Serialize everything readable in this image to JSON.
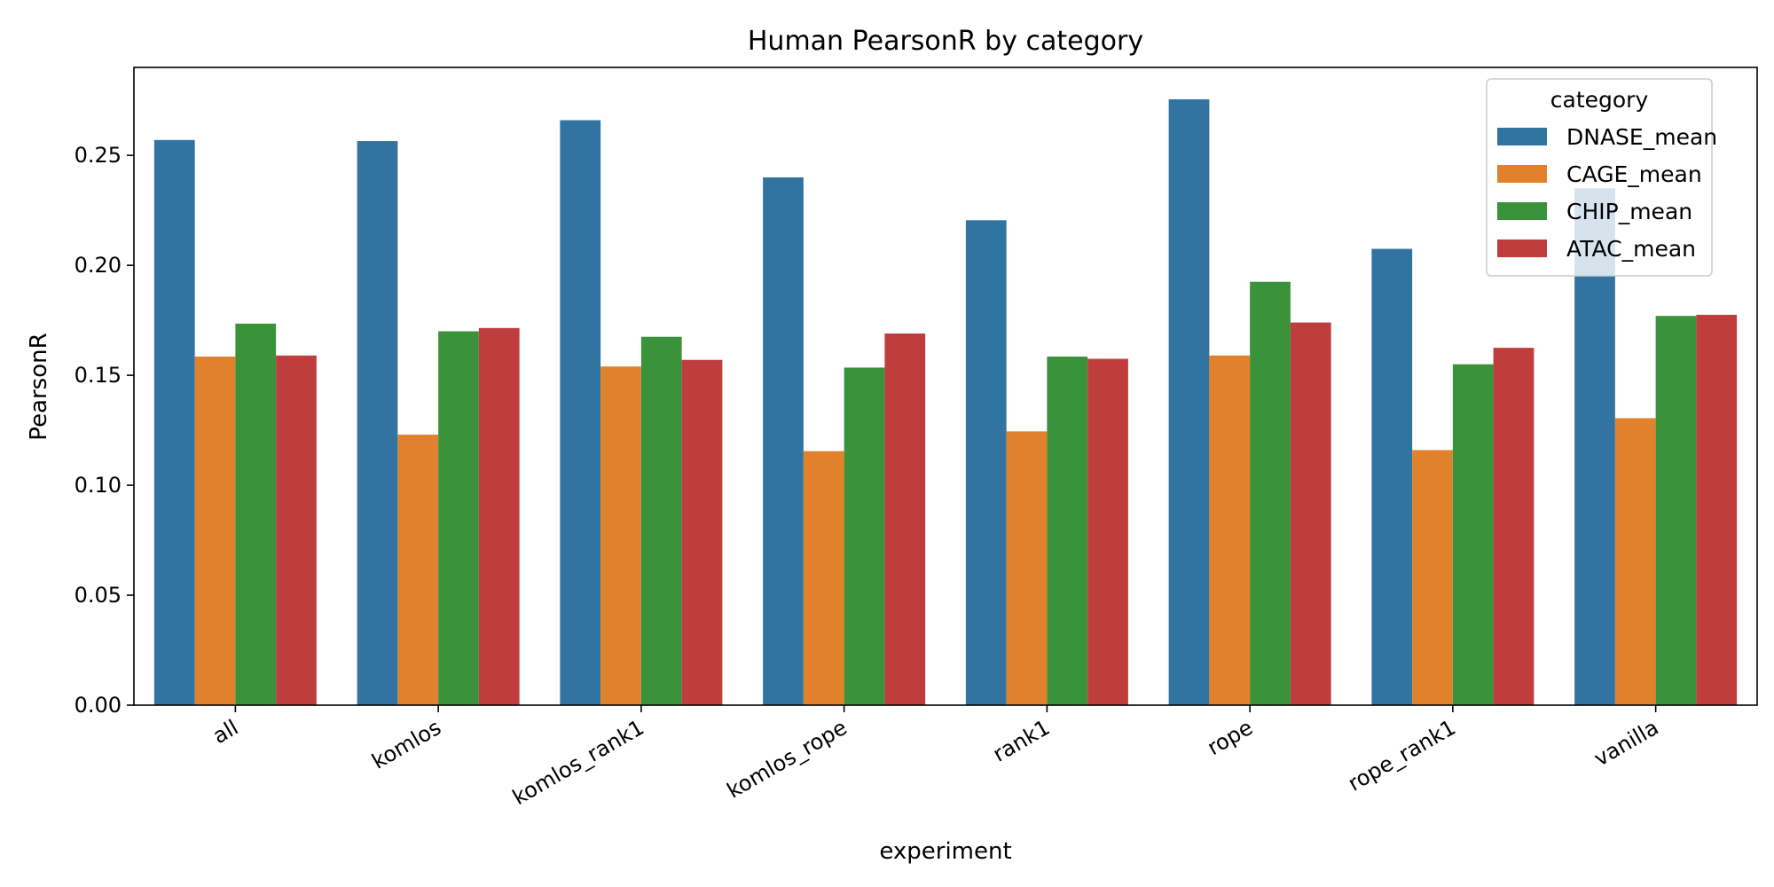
{
  "chart_data": {
    "type": "bar",
    "title": "Human PearsonR by category",
    "xlabel": "experiment",
    "ylabel": "PearsonR",
    "ylim": [
      0,
      0.29
    ],
    "yticks": [
      "0.00",
      "0.05",
      "0.10",
      "0.15",
      "0.20",
      "0.25"
    ],
    "categories": [
      "all",
      "komlos",
      "komlos_rank1",
      "komlos_rope",
      "rank1",
      "rope",
      "rope_rank1",
      "vanilla"
    ],
    "legend": {
      "title": "category",
      "placement": "top-right"
    },
    "series": [
      {
        "name": "DNASE_mean",
        "color": "#3274a1",
        "values": [
          0.257,
          0.2565,
          0.266,
          0.24,
          0.2205,
          0.2755,
          0.2075,
          0.235
        ]
      },
      {
        "name": "CAGE_mean",
        "color": "#e1812c",
        "values": [
          0.1585,
          0.123,
          0.154,
          0.1155,
          0.1245,
          0.159,
          0.116,
          0.1305
        ]
      },
      {
        "name": "CHIP_mean",
        "color": "#3a923a",
        "values": [
          0.1735,
          0.17,
          0.1675,
          0.1535,
          0.1585,
          0.1925,
          0.155,
          0.177
        ]
      },
      {
        "name": "ATAC_mean",
        "color": "#c03d3e",
        "values": [
          0.159,
          0.1715,
          0.157,
          0.169,
          0.1575,
          0.174,
          0.1625,
          0.1775
        ]
      }
    ]
  }
}
